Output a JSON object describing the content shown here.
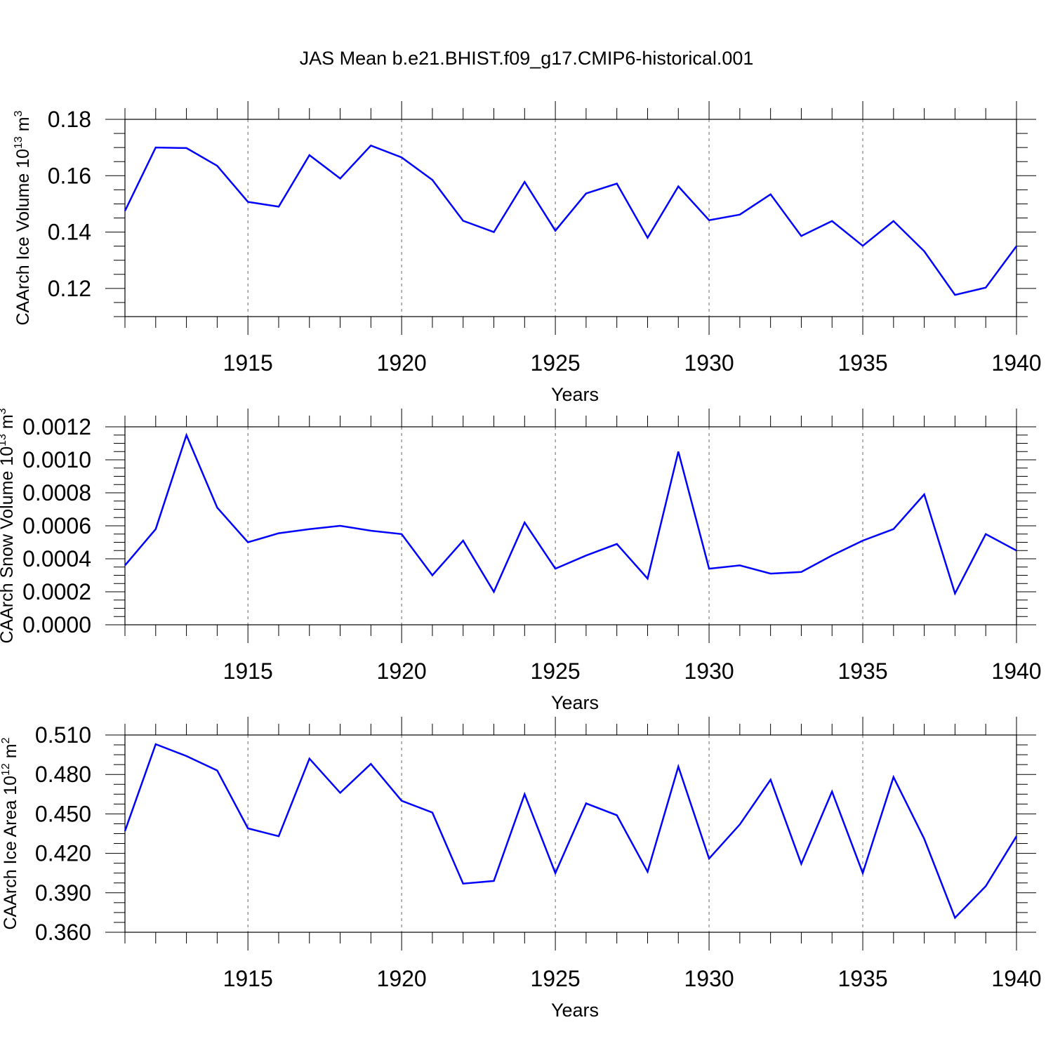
{
  "title": "JAS Mean b.e21.BHIST.f09_g17.CMIP6-historical.001",
  "colors": {
    "line": "#0000ff",
    "axis": "#000000",
    "grid": "#666666"
  },
  "chart_data": [
    {
      "type": "line",
      "xlabel": "Years",
      "ylabel": {
        "base": "CAArch Ice Volume 10",
        "exp": "13",
        "unit": " m",
        "unit_exp": "3"
      },
      "ylim": [
        0.11,
        0.18
      ],
      "yticks": [
        "0.12",
        "0.14",
        "0.16",
        "0.18"
      ],
      "ytick_values": [
        0.12,
        0.14,
        0.16,
        0.18
      ],
      "xlim": [
        1911,
        1940
      ],
      "xticks": [
        "1915",
        "1920",
        "1925",
        "1930",
        "1935",
        "1940"
      ],
      "xtick_values": [
        1915,
        1920,
        1925,
        1930,
        1935,
        1940
      ],
      "grid": "vertical dashed at major x ticks",
      "x": [
        1911,
        1912,
        1913,
        1914,
        1915,
        1916,
        1917,
        1918,
        1919,
        1920,
        1921,
        1922,
        1923,
        1924,
        1925,
        1926,
        1927,
        1928,
        1929,
        1930,
        1931,
        1932,
        1933,
        1934,
        1935,
        1936,
        1937,
        1938,
        1939,
        1940
      ],
      "series": [
        {
          "values": [
            0.1475,
            0.17,
            0.1698,
            0.1635,
            0.1507,
            0.149,
            0.1673,
            0.159,
            0.1707,
            0.1665,
            0.1585,
            0.144,
            0.14,
            0.1578,
            0.1405,
            0.1537,
            0.1572,
            0.138,
            0.1562,
            0.1442,
            0.1462,
            0.1534,
            0.1386,
            0.1439,
            0.1351,
            0.1439,
            0.1332,
            0.1177,
            0.1203,
            0.135
          ]
        }
      ]
    },
    {
      "type": "line",
      "xlabel": "Years",
      "ylabel": {
        "base": "CAArch Snow Volume 10",
        "exp": "13",
        "unit": " m",
        "unit_exp": "3"
      },
      "ylim": [
        0.0,
        0.0012
      ],
      "yticks": [
        "0.0000",
        "0.0002",
        "0.0004",
        "0.0006",
        "0.0008",
        "0.0010",
        "0.0012"
      ],
      "ytick_values": [
        0.0,
        0.0002,
        0.0004,
        0.0006,
        0.0008,
        0.001,
        0.0012
      ],
      "xlim": [
        1911,
        1940
      ],
      "xticks": [
        "1915",
        "1920",
        "1925",
        "1930",
        "1935",
        "1940"
      ],
      "xtick_values": [
        1915,
        1920,
        1925,
        1930,
        1935,
        1940
      ],
      "grid": "vertical dashed at major x ticks",
      "x": [
        1911,
        1912,
        1913,
        1914,
        1915,
        1916,
        1917,
        1918,
        1919,
        1920,
        1921,
        1922,
        1923,
        1924,
        1925,
        1926,
        1927,
        1928,
        1929,
        1930,
        1931,
        1932,
        1933,
        1934,
        1935,
        1936,
        1937,
        1938,
        1939,
        1940
      ],
      "series": [
        {
          "values": [
            0.00036,
            0.00058,
            0.00115,
            0.00071,
            0.0005,
            0.000555,
            0.00058,
            0.0006,
            0.00057,
            0.00055,
            0.0003,
            0.00051,
            0.0002,
            0.00062,
            0.00034,
            0.00042,
            0.00049,
            0.00028,
            0.00105,
            0.00034,
            0.00036,
            0.00031,
            0.00032,
            0.00042,
            0.00051,
            0.00058,
            0.00079,
            0.00019,
            0.00055,
            0.00045
          ]
        }
      ]
    },
    {
      "type": "line",
      "xlabel": "Years",
      "ylabel": {
        "base": "CAArch Ice Area 10",
        "exp": "12",
        "unit": " m",
        "unit_exp": "2"
      },
      "ylim": [
        0.36,
        0.51
      ],
      "yticks": [
        "0.360",
        "0.390",
        "0.420",
        "0.450",
        "0.480",
        "0.510"
      ],
      "ytick_values": [
        0.36,
        0.39,
        0.42,
        0.45,
        0.48,
        0.51
      ],
      "xlim": [
        1911,
        1940
      ],
      "xticks": [
        "1915",
        "1920",
        "1925",
        "1930",
        "1935",
        "1940"
      ],
      "xtick_values": [
        1915,
        1920,
        1925,
        1930,
        1935,
        1940
      ],
      "grid": "vertical dashed at major x ticks",
      "x": [
        1911,
        1912,
        1913,
        1914,
        1915,
        1916,
        1917,
        1918,
        1919,
        1920,
        1921,
        1922,
        1923,
        1924,
        1925,
        1926,
        1927,
        1928,
        1929,
        1930,
        1931,
        1932,
        1933,
        1934,
        1935,
        1936,
        1937,
        1938,
        1939,
        1940
      ],
      "series": [
        {
          "values": [
            0.437,
            0.503,
            0.494,
            0.483,
            0.439,
            0.433,
            0.492,
            0.466,
            0.488,
            0.46,
            0.451,
            0.397,
            0.399,
            0.465,
            0.405,
            0.458,
            0.449,
            0.406,
            0.486,
            0.416,
            0.442,
            0.476,
            0.412,
            0.467,
            0.405,
            0.478,
            0.431,
            0.371,
            0.395,
            0.433
          ]
        }
      ]
    }
  ]
}
